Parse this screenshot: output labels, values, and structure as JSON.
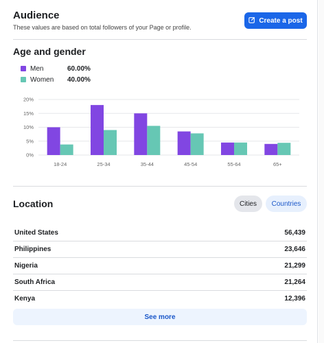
{
  "header": {
    "title": "Audience",
    "subtitle": "These values are based on total followers of your Page or profile.",
    "create_label": "Create a post"
  },
  "age_gender": {
    "title": "Age and gender",
    "legend": [
      {
        "name": "Men",
        "value": "60.00%",
        "color": "#8146e2"
      },
      {
        "name": "Women",
        "value": "40.00%",
        "color": "#66c7b4"
      }
    ]
  },
  "chart_data": {
    "type": "bar",
    "categories": [
      "18-24",
      "25-34",
      "35-44",
      "45-54",
      "55-64",
      "65+"
    ],
    "series": [
      {
        "name": "Men",
        "values": [
          10,
          18,
          15,
          8.5,
          4.5,
          4
        ]
      },
      {
        "name": "Women",
        "values": [
          3.8,
          9,
          10.5,
          7.8,
          4.5,
          4.4
        ]
      }
    ],
    "yticks": [
      "0%",
      "5%",
      "10%",
      "15%",
      "20%"
    ],
    "ylim": [
      0,
      20
    ],
    "grid": true,
    "colors": [
      "#8146e2",
      "#66c7b4"
    ]
  },
  "location": {
    "title": "Location",
    "tabs": [
      "Cities",
      "Countries"
    ],
    "rows": [
      {
        "name": "United States",
        "count": "56,439"
      },
      {
        "name": "Philippines",
        "count": "23,646"
      },
      {
        "name": "Nigeria",
        "count": "21,299"
      },
      {
        "name": "South Africa",
        "count": "21,264"
      },
      {
        "name": "Kenya",
        "count": "12,396"
      }
    ],
    "see_more": "See more"
  }
}
